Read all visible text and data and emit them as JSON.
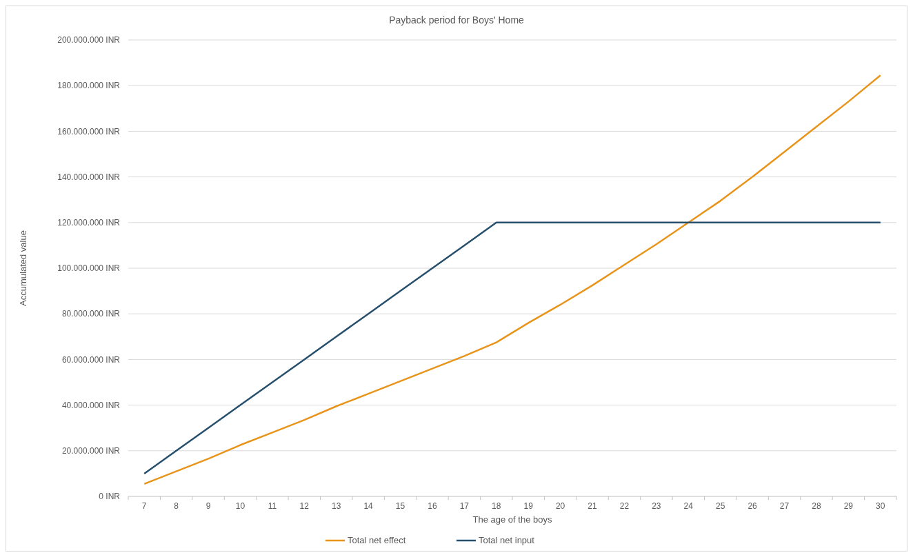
{
  "chart_data": {
    "type": "line",
    "title": "Payback period for Boys' Home",
    "xlabel": "The age of the boys",
    "ylabel": "Accumulated value",
    "categories": [
      "7",
      "8",
      "9",
      "10",
      "11",
      "12",
      "13",
      "14",
      "15",
      "16",
      "17",
      "18",
      "19",
      "20",
      "21",
      "22",
      "23",
      "24",
      "25",
      "26",
      "27",
      "28",
      "29",
      "30"
    ],
    "series": [
      {
        "name": "Total net effect",
        "color": "#e8941a",
        "values": [
          5500000,
          11000000,
          16500000,
          22500000,
          28000000,
          33500000,
          39500000,
          45000000,
          50500000,
          56000000,
          61500000,
          67500000,
          76000000,
          84000000,
          92500000,
          101500000,
          110500000,
          120000000,
          129500000,
          140000000,
          151000000,
          162000000,
          173000000,
          184500000
        ]
      },
      {
        "name": "Total net input",
        "color": "#264f6e",
        "values": [
          10000000,
          20000000,
          30000000,
          40000000,
          50000000,
          60000000,
          70000000,
          80000000,
          90000000,
          100000000,
          110000000,
          120000000,
          120000000,
          120000000,
          120000000,
          120000000,
          120000000,
          120000000,
          120000000,
          120000000,
          120000000,
          120000000,
          120000000,
          120000000
        ]
      }
    ],
    "ylim": [
      0,
      200000000
    ],
    "yticks": [
      {
        "value": 0,
        "label": "0 INR"
      },
      {
        "value": 20000000,
        "label": "20.000.000 INR"
      },
      {
        "value": 40000000,
        "label": "40.000.000 INR"
      },
      {
        "value": 60000000,
        "label": "60.000.000 INR"
      },
      {
        "value": 80000000,
        "label": "80.000.000 INR"
      },
      {
        "value": 100000000,
        "label": "100.000.000 INR"
      },
      {
        "value": 120000000,
        "label": "120.000.000 INR"
      },
      {
        "value": 140000000,
        "label": "140.000.000 INR"
      },
      {
        "value": 160000000,
        "label": "160.000.000 INR"
      },
      {
        "value": 180000000,
        "label": "180.000.000 INR"
      },
      {
        "value": 200000000,
        "label": "200.000.000 INR"
      }
    ],
    "grid": "y",
    "legend": "bottom",
    "line_style": "solid",
    "marker": "none"
  }
}
